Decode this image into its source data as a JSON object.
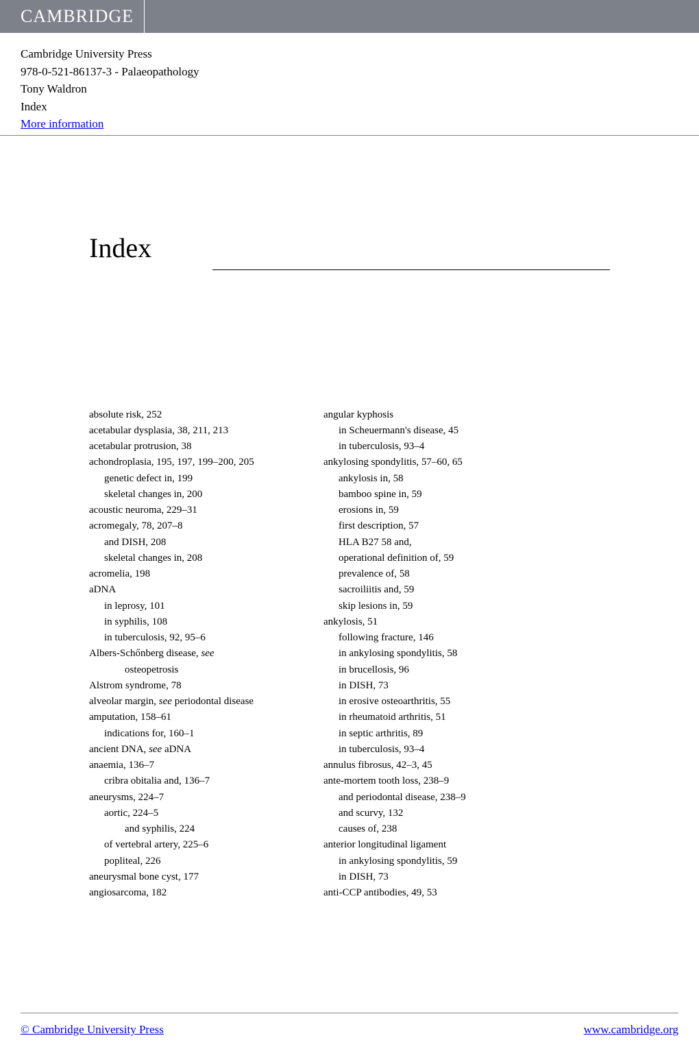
{
  "header": {
    "logo": "CAMBRIDGE"
  },
  "metadata": {
    "publisher": "Cambridge University Press",
    "isbn_title": "978-0-521-86137-3 - Palaeopathology",
    "author": "Tony Waldron",
    "section": "Index",
    "more_info": "More information"
  },
  "page_title": "Index",
  "index": {
    "left": [
      {
        "text": "absolute risk, 252",
        "indent": 0
      },
      {
        "text": "acetabular dysplasia, 38, 211, 213",
        "indent": 0
      },
      {
        "text": "acetabular protrusion, 38",
        "indent": 0
      },
      {
        "text": "achondroplasia, 195, 197, 199–200, 205",
        "indent": 0
      },
      {
        "text": "genetic defect in, 199",
        "indent": 1
      },
      {
        "text": "skeletal changes in, 200",
        "indent": 1
      },
      {
        "text": "acoustic neuroma, 229–31",
        "indent": 0
      },
      {
        "text": "acromegaly, 78, 207–8",
        "indent": 0
      },
      {
        "text": "and DISH, 208",
        "indent": 1
      },
      {
        "text": "skeletal changes in, 208",
        "indent": 1
      },
      {
        "text": "acromelia, 198",
        "indent": 0
      },
      {
        "text": "aDNA",
        "indent": 0
      },
      {
        "text": "in leprosy, 101",
        "indent": 1
      },
      {
        "text": "in syphilis, 108",
        "indent": 1
      },
      {
        "text": "in tuberculosis, 92, 95–6",
        "indent": 1
      },
      {
        "text": "Albers-Schőnberg disease, ",
        "indent": 0,
        "see": "see"
      },
      {
        "text": "osteopetrosis",
        "indent": 2
      },
      {
        "text": "Alstrom syndrome, 78",
        "indent": 0
      },
      {
        "text": "alveolar margin, ",
        "indent": 0,
        "see": "see",
        "after": "  periodontal disease"
      },
      {
        "text": "amputation, 158–61",
        "indent": 0
      },
      {
        "text": "indications for, 160–1",
        "indent": 1
      },
      {
        "text": "ancient DNA, ",
        "indent": 0,
        "see": "see",
        "after": "  aDNA"
      },
      {
        "text": "anaemia, 136–7",
        "indent": 0
      },
      {
        "text": "cribra obitalia and, 136–7",
        "indent": 1
      },
      {
        "text": "aneurysms, 224–7",
        "indent": 0
      },
      {
        "text": "aortic, 224–5",
        "indent": 1
      },
      {
        "text": "and syphilis, 224",
        "indent": 2
      },
      {
        "text": "of vertebral artery, 225–6",
        "indent": 1
      },
      {
        "text": "popliteal, 226",
        "indent": 1
      },
      {
        "text": "aneurysmal bone cyst, 177",
        "indent": 0
      },
      {
        "text": "angiosarcoma, 182",
        "indent": 0
      }
    ],
    "right": [
      {
        "text": "angular kyphosis",
        "indent": 0
      },
      {
        "text": "in Scheuermann's disease, 45",
        "indent": 1
      },
      {
        "text": "in tuberculosis, 93–4",
        "indent": 1
      },
      {
        "text": "ankylosing spondylitis, 57–60, 65",
        "indent": 0
      },
      {
        "text": "ankylosis in, 58",
        "indent": 1
      },
      {
        "text": "bamboo spine in, 59",
        "indent": 1
      },
      {
        "text": "erosions in, 59",
        "indent": 1
      },
      {
        "text": "first description, 57",
        "indent": 1
      },
      {
        "text": "HLA B27 58 and,",
        "indent": 1
      },
      {
        "text": "operational definition of, 59",
        "indent": 1
      },
      {
        "text": "prevalence of, 58",
        "indent": 1
      },
      {
        "text": "sacroiliitis and, 59",
        "indent": 1
      },
      {
        "text": "skip lesions in, 59",
        "indent": 1
      },
      {
        "text": "ankylosis, 51",
        "indent": 0
      },
      {
        "text": "following fracture, 146",
        "indent": 1
      },
      {
        "text": "in ankylosing spondylitis, 58",
        "indent": 1
      },
      {
        "text": "in brucellosis, 96",
        "indent": 1
      },
      {
        "text": "in DISH, 73",
        "indent": 1
      },
      {
        "text": "in erosive osteoarthritis, 55",
        "indent": 1
      },
      {
        "text": "in rheumatoid arthritis, 51",
        "indent": 1
      },
      {
        "text": "in septic arthritis, 89",
        "indent": 1
      },
      {
        "text": "in tuberculosis, 93–4",
        "indent": 1
      },
      {
        "text": "annulus fibrosus, 42–3, 45",
        "indent": 0
      },
      {
        "text": "ante-mortem tooth loss, 238–9",
        "indent": 0
      },
      {
        "text": "and periodontal disease, 238–9",
        "indent": 1
      },
      {
        "text": "and scurvy, 132",
        "indent": 1
      },
      {
        "text": "causes of, 238",
        "indent": 1
      },
      {
        "text": "anterior longitudinal ligament",
        "indent": 0
      },
      {
        "text": "in ankylosing spondylitis, 59",
        "indent": 1
      },
      {
        "text": "in DISH, 73",
        "indent": 1
      },
      {
        "text": "anti-CCP antibodies, 49, 53",
        "indent": 0
      }
    ]
  },
  "footer": {
    "copyright": "© Cambridge University Press",
    "url": "www.cambridge.org"
  }
}
